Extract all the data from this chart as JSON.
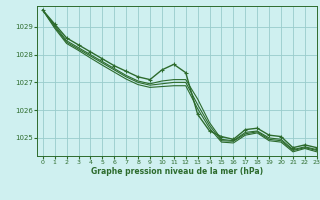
{
  "bg_color": "#cff0f0",
  "grid_color": "#99cccc",
  "line_color": "#2d6b2d",
  "text_color": "#2d6b2d",
  "xlabel": "Graphe pression niveau de la mer (hPa)",
  "xlim": [
    -0.5,
    23
  ],
  "ylim": [
    1024.35,
    1029.75
  ],
  "yticks": [
    1025,
    1026,
    1027,
    1028,
    1029
  ],
  "xticks": [
    0,
    1,
    2,
    3,
    4,
    5,
    6,
    7,
    8,
    9,
    10,
    11,
    12,
    13,
    14,
    15,
    16,
    17,
    18,
    19,
    20,
    21,
    22,
    23
  ],
  "series": [
    {
      "y": [
        1029.6,
        1029.1,
        1028.6,
        1028.35,
        1028.1,
        1027.85,
        1027.6,
        1027.4,
        1027.2,
        1027.1,
        1027.45,
        1027.65,
        1027.35,
        1025.85,
        1025.25,
        1025.05,
        1024.95,
        1025.3,
        1025.35,
        1025.1,
        1025.05,
        1024.65,
        1024.75,
        1024.65
      ],
      "marker": true,
      "lw": 1.0
    },
    {
      "y": [
        1029.6,
        1029.05,
        1028.5,
        1028.25,
        1028.0,
        1027.75,
        1027.5,
        1027.25,
        1027.05,
        1026.95,
        1027.05,
        1027.1,
        1027.1,
        1026.4,
        1025.55,
        1024.95,
        1024.9,
        1025.2,
        1025.25,
        1025.0,
        1024.95,
        1024.58,
        1024.68,
        1024.58
      ],
      "marker": false,
      "lw": 0.8
    },
    {
      "y": [
        1029.6,
        1029.0,
        1028.45,
        1028.2,
        1027.95,
        1027.7,
        1027.45,
        1027.2,
        1027.0,
        1026.9,
        1026.95,
        1027.0,
        1027.0,
        1026.2,
        1025.45,
        1024.9,
        1024.88,
        1025.15,
        1025.22,
        1024.95,
        1024.9,
        1024.55,
        1024.65,
        1024.55
      ],
      "marker": false,
      "lw": 0.8
    },
    {
      "y": [
        1029.6,
        1028.95,
        1028.4,
        1028.15,
        1027.88,
        1027.62,
        1027.37,
        1027.12,
        1026.92,
        1026.82,
        1026.85,
        1026.88,
        1026.88,
        1026.05,
        1025.35,
        1024.85,
        1024.82,
        1025.1,
        1025.18,
        1024.9,
        1024.85,
        1024.5,
        1024.62,
        1024.5
      ],
      "marker": false,
      "lw": 0.8
    }
  ]
}
